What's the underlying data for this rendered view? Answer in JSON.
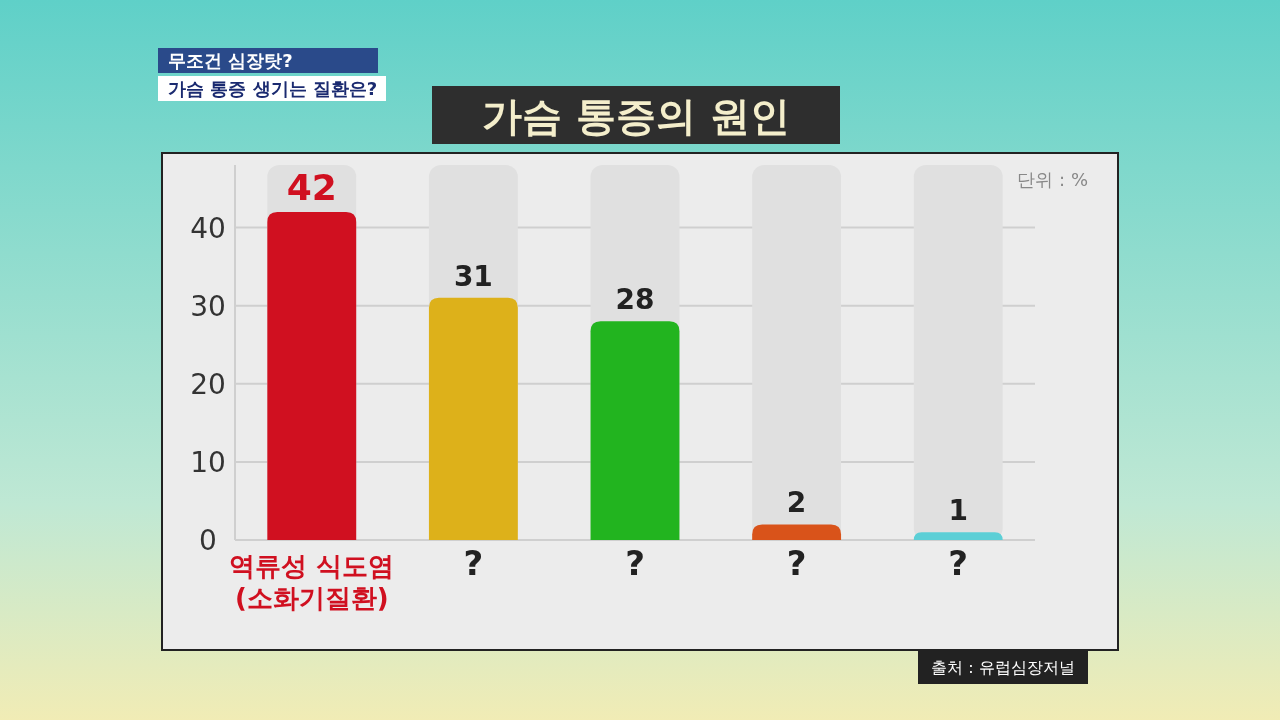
{
  "chart_data": {
    "type": "bar",
    "title": "가슴 통증의 원인",
    "categories": [
      "역류성 식도염\n(소화기질환)",
      "?",
      "?",
      "?",
      "?"
    ],
    "values": [
      42,
      31,
      28,
      2,
      1
    ],
    "colors": [
      "#d01020",
      "#ddb11a",
      "#22b41f",
      "#d9531a",
      "#5ccfd6"
    ],
    "ylim": [
      0,
      48
    ],
    "yticks": [
      0,
      10,
      20,
      30,
      40
    ],
    "grid": "y",
    "data_labels": true,
    "annotations": [
      "단위 : %",
      "출처 : 유럽심장저널",
      "무조건 심장탓?",
      "가슴 통증 생기는 질환은?"
    ]
  }
}
